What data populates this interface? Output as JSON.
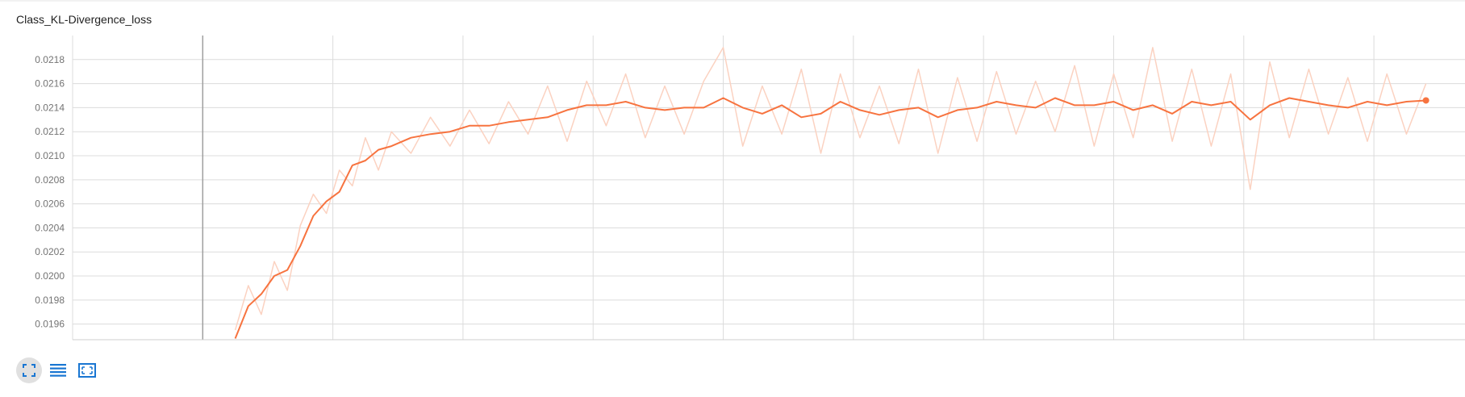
{
  "card": {
    "title": "Class_KL-Divergence_loss"
  },
  "toolbar": {
    "buttons": [
      {
        "name": "fit-domain-button",
        "icon": "fullscreen-icon",
        "active": true
      },
      {
        "name": "toggle-log-scale-button",
        "icon": "list-lines-icon",
        "active": false
      },
      {
        "name": "toggle-y-axis-fit-button",
        "icon": "select-region-icon",
        "active": false
      }
    ],
    "accent_color": "#1976d2"
  },
  "chart_data": {
    "type": "line",
    "title": "Class_KL-Divergence_loss",
    "xlabel": "",
    "ylabel": "",
    "ylim": [
      0.01947,
      0.022
    ],
    "xlim": [
      0,
      10.7
    ],
    "yticks": [
      "0.0196",
      "0.0198",
      "0.0200",
      "0.0202",
      "0.0204",
      "0.0206",
      "0.0208",
      "0.0210",
      "0.0212",
      "0.0214",
      "0.0216",
      "0.0218"
    ],
    "x_gridlines": 11,
    "grid": true,
    "colors": {
      "smoothed": "#f7733f",
      "raw": "#fbd2c1"
    },
    "series": [
      {
        "role": "smoothed",
        "x": [
          1.25,
          1.35,
          1.45,
          1.55,
          1.65,
          1.75,
          1.85,
          1.95,
          2.05,
          2.15,
          2.25,
          2.35,
          2.45,
          2.6,
          2.75,
          2.9,
          3.05,
          3.2,
          3.35,
          3.5,
          3.65,
          3.8,
          3.95,
          4.1,
          4.25,
          4.4,
          4.55,
          4.7,
          4.85,
          5.0,
          5.15,
          5.3,
          5.45,
          5.6,
          5.75,
          5.9,
          6.05,
          6.2,
          6.35,
          6.5,
          6.65,
          6.8,
          6.95,
          7.1,
          7.25,
          7.4,
          7.55,
          7.7,
          7.85,
          8.0,
          8.15,
          8.3,
          8.45,
          8.6,
          8.75,
          8.9,
          9.05,
          9.2,
          9.35,
          9.5,
          9.65,
          9.8,
          9.95,
          10.1,
          10.25,
          10.4
        ],
        "y": [
          0.01948,
          0.01975,
          0.01985,
          0.02,
          0.02005,
          0.02025,
          0.0205,
          0.02062,
          0.0207,
          0.02092,
          0.02096,
          0.02105,
          0.02108,
          0.02115,
          0.02118,
          0.0212,
          0.02125,
          0.02125,
          0.02128,
          0.0213,
          0.02132,
          0.02138,
          0.02142,
          0.02142,
          0.02145,
          0.0214,
          0.02138,
          0.0214,
          0.0214,
          0.02148,
          0.0214,
          0.02135,
          0.02142,
          0.02132,
          0.02135,
          0.02145,
          0.02138,
          0.02134,
          0.02138,
          0.0214,
          0.02132,
          0.02138,
          0.0214,
          0.02145,
          0.02142,
          0.0214,
          0.02148,
          0.02142,
          0.02142,
          0.02145,
          0.02138,
          0.02142,
          0.02135,
          0.02145,
          0.02142,
          0.02145,
          0.0213,
          0.02142,
          0.02148,
          0.02145,
          0.02142,
          0.0214,
          0.02145,
          0.02142,
          0.02145,
          0.02146
        ],
        "last_point": {
          "x": 10.4,
          "y": 0.02146
        }
      },
      {
        "role": "raw",
        "x": [
          1.25,
          1.35,
          1.45,
          1.55,
          1.65,
          1.75,
          1.85,
          1.95,
          2.05,
          2.15,
          2.25,
          2.35,
          2.45,
          2.6,
          2.75,
          2.9,
          3.05,
          3.2,
          3.35,
          3.5,
          3.65,
          3.8,
          3.95,
          4.1,
          4.25,
          4.4,
          4.55,
          4.7,
          4.85,
          5.0,
          5.15,
          5.3,
          5.45,
          5.6,
          5.75,
          5.9,
          6.05,
          6.2,
          6.35,
          6.5,
          6.65,
          6.8,
          6.95,
          7.1,
          7.25,
          7.4,
          7.55,
          7.7,
          7.85,
          8.0,
          8.15,
          8.3,
          8.45,
          8.6,
          8.75,
          8.9,
          9.05,
          9.2,
          9.35,
          9.5,
          9.65,
          9.8,
          9.95,
          10.1,
          10.25,
          10.4
        ],
        "y": [
          0.01955,
          0.01992,
          0.01968,
          0.02012,
          0.01988,
          0.02042,
          0.02068,
          0.02052,
          0.02088,
          0.02075,
          0.02115,
          0.02088,
          0.0212,
          0.02102,
          0.02132,
          0.02108,
          0.02138,
          0.0211,
          0.02145,
          0.02118,
          0.02158,
          0.02112,
          0.02162,
          0.02125,
          0.02168,
          0.02115,
          0.02158,
          0.02118,
          0.02162,
          0.0219,
          0.02108,
          0.02158,
          0.02118,
          0.02172,
          0.02102,
          0.02168,
          0.02115,
          0.02158,
          0.0211,
          0.02172,
          0.02102,
          0.02165,
          0.02112,
          0.0217,
          0.02118,
          0.02162,
          0.0212,
          0.02175,
          0.02108,
          0.02168,
          0.02115,
          0.0219,
          0.02112,
          0.02172,
          0.02108,
          0.02168,
          0.02072,
          0.02178,
          0.02115,
          0.02172,
          0.02118,
          0.02165,
          0.02112,
          0.02168,
          0.02118,
          0.0216
        ]
      }
    ]
  }
}
